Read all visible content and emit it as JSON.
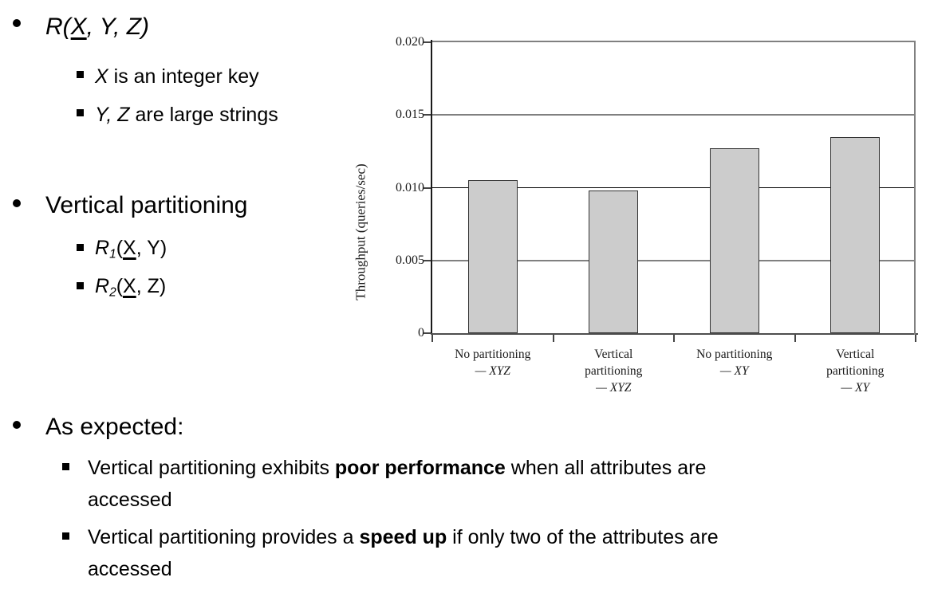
{
  "slide": {
    "bullet1": {
      "pre": "R(",
      "key": "X",
      "post": ", Y, Z)"
    },
    "bullet1_sub1": {
      "var": "X",
      "rest": " is an integer key"
    },
    "bullet1_sub2": {
      "var": "Y, Z",
      "rest": " are large strings"
    },
    "bullet2": {
      "label": "Vertical partitioning"
    },
    "bullet2_sub1": {
      "r": "R",
      "sub": "1",
      "open": "(",
      "key": "X",
      "close": ", Y)"
    },
    "bullet2_sub2": {
      "r": "R",
      "sub": "2",
      "open": "(",
      "key": "X",
      "close": ", Z)"
    },
    "bullet3": {
      "label": "As expected:"
    },
    "bullet3_sub1": {
      "pre": "Vertical partitioning exhibits ",
      "bold": "poor performance",
      "post": " when all attributes are",
      "line2": "accessed"
    },
    "bullet3_sub2": {
      "pre": "Vertical partitioning provides a ",
      "bold": "speed up",
      "post": " if only two of the attributes are",
      "line2": "accessed"
    }
  },
  "chart_data": {
    "type": "bar",
    "title": "",
    "xlabel": "",
    "ylabel": "Throughput (queries/sec)",
    "ylim": [
      0,
      0.02
    ],
    "grid": true,
    "legend": false,
    "yticks": [
      {
        "value": 0.02,
        "label": "0.020"
      },
      {
        "value": 0.015,
        "label": "0.015"
      },
      {
        "value": 0.01,
        "label": "0.010"
      },
      {
        "value": 0.005,
        "label": "0.005"
      },
      {
        "value": 0,
        "label": "0"
      }
    ],
    "categories": [
      {
        "label": "No partitioning",
        "variant": "— XYZ"
      },
      {
        "label": "Vertical partitioning",
        "variant": "— XYZ"
      },
      {
        "label": "No partitioning",
        "variant": "— XY"
      },
      {
        "label": "Vertical partitioning",
        "variant": "— XY"
      }
    ],
    "values": [
      0.0105,
      0.0098,
      0.0127,
      0.0135
    ],
    "colors": {
      "bar_fill": "#cccccc",
      "bar_border": "#333333",
      "gridline": "#808080",
      "axis": "#1a1a1a"
    }
  }
}
